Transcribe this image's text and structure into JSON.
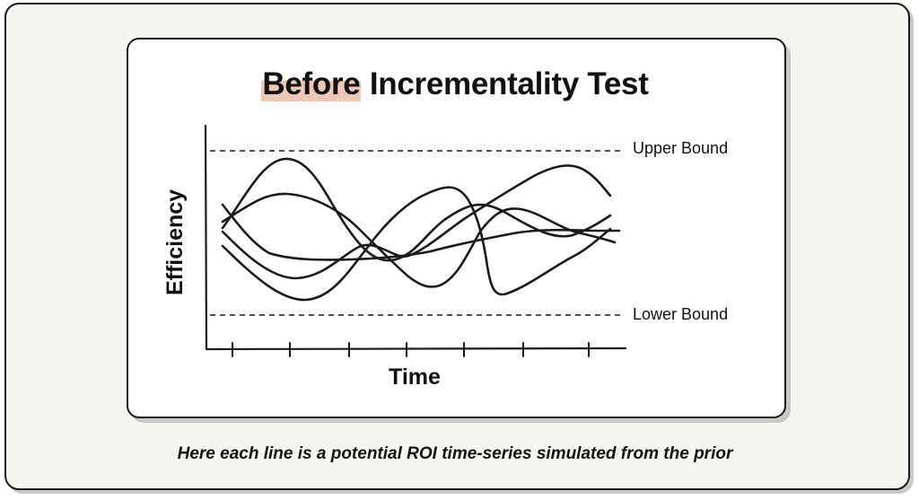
{
  "title": {
    "highlight": "Before",
    "rest": " Incrementality Test"
  },
  "diagram": {
    "upper_label": "Upper Bound",
    "lower_label": "Lower Bound",
    "y_label": "Efficiency",
    "x_label": "Time"
  },
  "caption": "Here each line is a potential ROI time-series simulated from the prior"
}
